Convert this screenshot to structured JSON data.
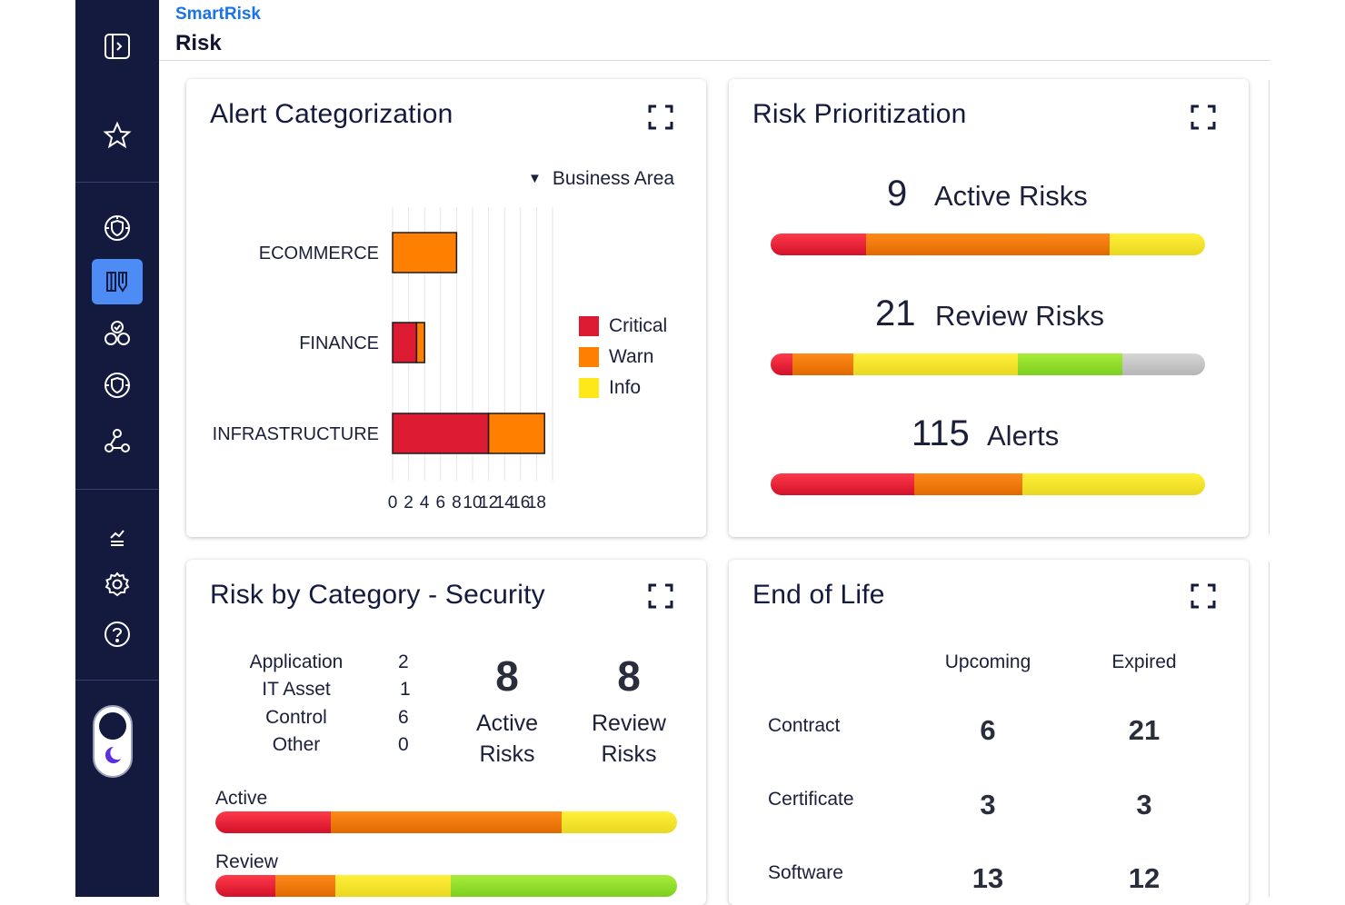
{
  "app": {
    "brand": "SmartRisk",
    "page_title": "Risk"
  },
  "sidebar": {
    "items": [
      {
        "name": "collapse-panel-icon"
      },
      {
        "name": "star-icon"
      },
      {
        "name": "shield-globe-icon"
      },
      {
        "name": "risk-board-icon",
        "active": true
      },
      {
        "name": "circles-check-icon"
      },
      {
        "name": "shield-globe-2-icon"
      },
      {
        "name": "network-icon"
      },
      {
        "name": "reports-icon"
      },
      {
        "name": "gear-icon"
      },
      {
        "name": "help-icon"
      }
    ],
    "theme_toggle": "dark-mode-toggle"
  },
  "alert_categorization": {
    "title": "Alert Categorization",
    "filter_label": "Business Area",
    "chart_data": {
      "type": "bar",
      "orientation": "horizontal",
      "stacked": true,
      "categories": [
        "ECOMMERCE",
        "FINANCE",
        "INFRASTRUCTURE"
      ],
      "series": [
        {
          "name": "Critical",
          "color": "#dc1a32",
          "values": [
            0,
            3,
            12
          ]
        },
        {
          "name": "Warn",
          "color": "#ff7f00",
          "values": [
            8,
            1,
            7
          ]
        },
        {
          "name": "Info",
          "color": "#ffe81a",
          "values": [
            0,
            0,
            0
          ]
        }
      ],
      "xticks": [
        "0",
        "2",
        "4",
        "6",
        "8",
        "10",
        "12",
        "14",
        "16",
        "18"
      ],
      "xlim": [
        0,
        20
      ],
      "legend": "right",
      "grid": true
    }
  },
  "risk_prioritization": {
    "title": "Risk Prioritization",
    "stats": [
      {
        "value": "9",
        "label": "Active Risks",
        "segments": [
          {
            "color": "red",
            "fraction": 0.22
          },
          {
            "color": "orange",
            "fraction": 0.56
          },
          {
            "color": "yellow",
            "fraction": 0.22
          }
        ]
      },
      {
        "value": "21",
        "label": "Review Risks",
        "segments": [
          {
            "color": "red",
            "fraction": 0.05
          },
          {
            "color": "orange",
            "fraction": 0.14
          },
          {
            "color": "yellow",
            "fraction": 0.38
          },
          {
            "color": "green",
            "fraction": 0.24
          },
          {
            "color": "gray",
            "fraction": 0.19
          }
        ]
      },
      {
        "value": "115",
        "label": "Alerts",
        "segments": [
          {
            "color": "red",
            "fraction": 0.33
          },
          {
            "color": "orange",
            "fraction": 0.25
          },
          {
            "color": "yellow",
            "fraction": 0.42
          }
        ]
      }
    ]
  },
  "risk_by_category": {
    "title": "Risk by Category - Security",
    "rows": [
      {
        "label": "Application",
        "count": "2"
      },
      {
        "label": "IT Asset",
        "count": "1"
      },
      {
        "label": "Control",
        "count": "6"
      },
      {
        "label": "Other",
        "count": "0"
      }
    ],
    "active_count": "8",
    "active_label_1": "Active",
    "active_label_2": "Risks",
    "review_count": "8",
    "review_label_1": "Review",
    "review_label_2": "Risks",
    "active_bar_label": "Active",
    "review_bar_label": "Review",
    "active_segments": [
      {
        "color": "red",
        "fraction": 0.25
      },
      {
        "color": "orange",
        "fraction": 0.5
      },
      {
        "color": "yellow",
        "fraction": 0.25
      }
    ],
    "review_segments": [
      {
        "color": "red",
        "fraction": 0.13
      },
      {
        "color": "orange",
        "fraction": 0.13
      },
      {
        "color": "yellow",
        "fraction": 0.25
      },
      {
        "color": "green",
        "fraction": 0.49
      }
    ]
  },
  "end_of_life": {
    "title": "End of Life",
    "columns": [
      "Upcoming",
      "Expired"
    ],
    "rows": [
      {
        "label": "Contract",
        "upcoming": "6",
        "expired": "21"
      },
      {
        "label": "Certificate",
        "upcoming": "3",
        "expired": "3"
      },
      {
        "label": "Software",
        "upcoming": "13",
        "expired": "12"
      }
    ]
  }
}
